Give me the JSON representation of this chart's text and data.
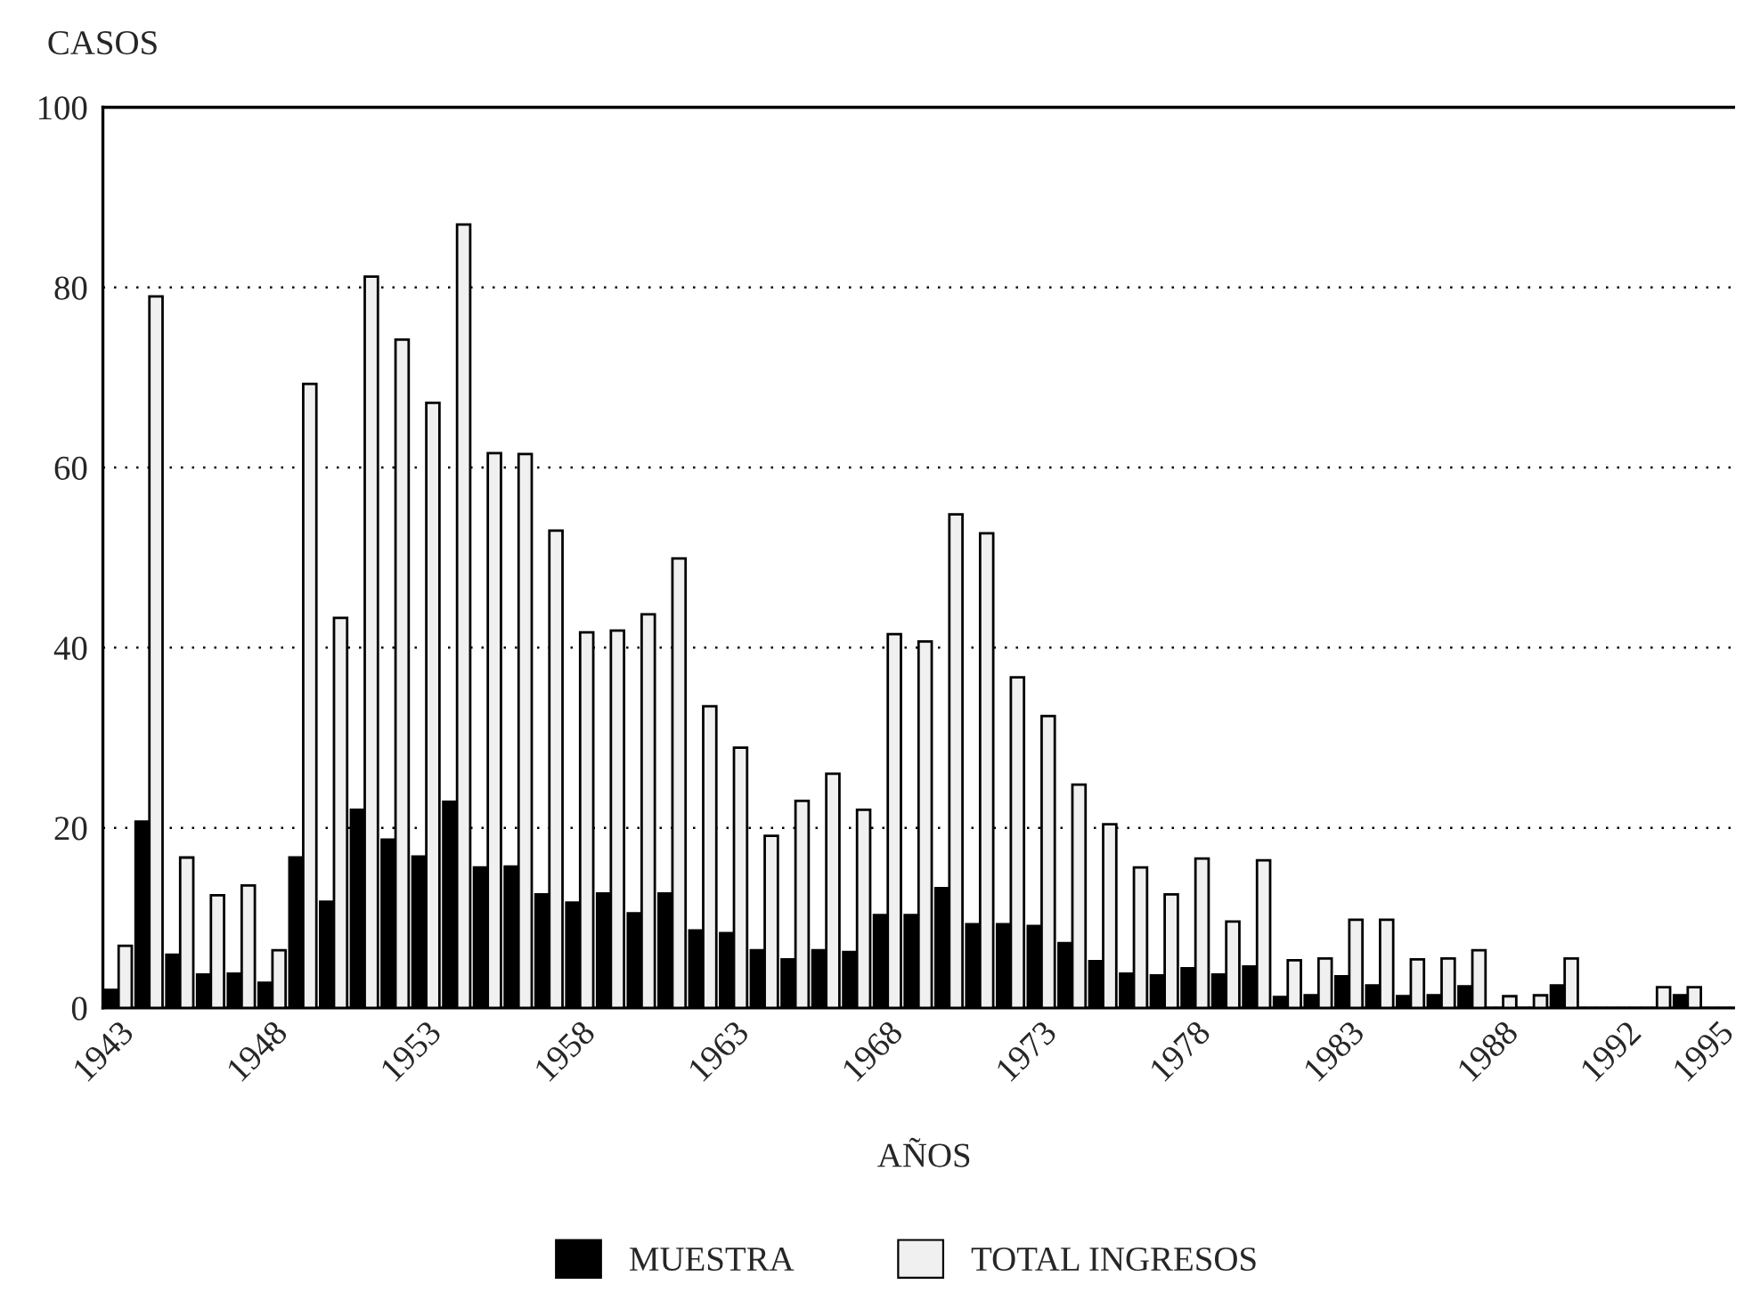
{
  "chart_data": {
    "type": "bar",
    "ylabel": "CASOS",
    "xlabel": "AÑOS",
    "categories": [
      "1943",
      null,
      null,
      null,
      null,
      "1948",
      null,
      null,
      null,
      null,
      "1953",
      null,
      null,
      null,
      null,
      "1958",
      null,
      null,
      null,
      null,
      "1963",
      null,
      null,
      null,
      null,
      "1968",
      null,
      null,
      null,
      null,
      "1973",
      null,
      null,
      null,
      null,
      "1978",
      null,
      null,
      null,
      null,
      "1983",
      null,
      null,
      null,
      null,
      "1988",
      null,
      null,
      null,
      "1992",
      null,
      null,
      "1995"
    ],
    "series": [
      {
        "name": "MUESTRA",
        "color": "#000000",
        "values": [
          2.0,
          20.7,
          5.9,
          3.7,
          3.8,
          2.8,
          16.7,
          11.8,
          22,
          18.7,
          16.8,
          22.9,
          15.6,
          15.7,
          12.6,
          11.7,
          12.7,
          10.5,
          12.7,
          8.6,
          8.3,
          6.4,
          5.4,
          6.4,
          6.2,
          10.3,
          10.3,
          13.3,
          9.3,
          9.3,
          9.1,
          7.2,
          5.2,
          3.8,
          3.6,
          4.4,
          3.7,
          4.6,
          1.2,
          1.4,
          3.5,
          2.5,
          1.3,
          1.4,
          2.4,
          0,
          0,
          2.5,
          0,
          0,
          0,
          1.4,
          0
        ]
      },
      {
        "name": "TOTAL INGRESOS",
        "color": "#f0f0f0",
        "values": [
          6.9,
          79,
          16.7,
          12.5,
          13.6,
          6.4,
          69.3,
          43.3,
          81.2,
          74.2,
          67.2,
          87,
          61.6,
          61.5,
          53,
          41.7,
          41.9,
          43.7,
          49.9,
          33.5,
          28.9,
          19.1,
          23,
          26,
          22,
          41.5,
          40.7,
          54.8,
          52.7,
          36.7,
          32.4,
          24.8,
          20.4,
          15.6,
          12.6,
          16.6,
          9.6,
          16.4,
          5.3,
          5.5,
          9.8,
          9.8,
          5.4,
          5.5,
          6.4,
          1.3,
          1.4,
          5.5,
          0,
          0,
          2.3,
          2.3,
          0
        ]
      }
    ],
    "ylim": [
      0,
      100
    ],
    "yticks": [
      0,
      20,
      40,
      60,
      80,
      100
    ],
    "grid": "y",
    "legend": "bottom"
  }
}
